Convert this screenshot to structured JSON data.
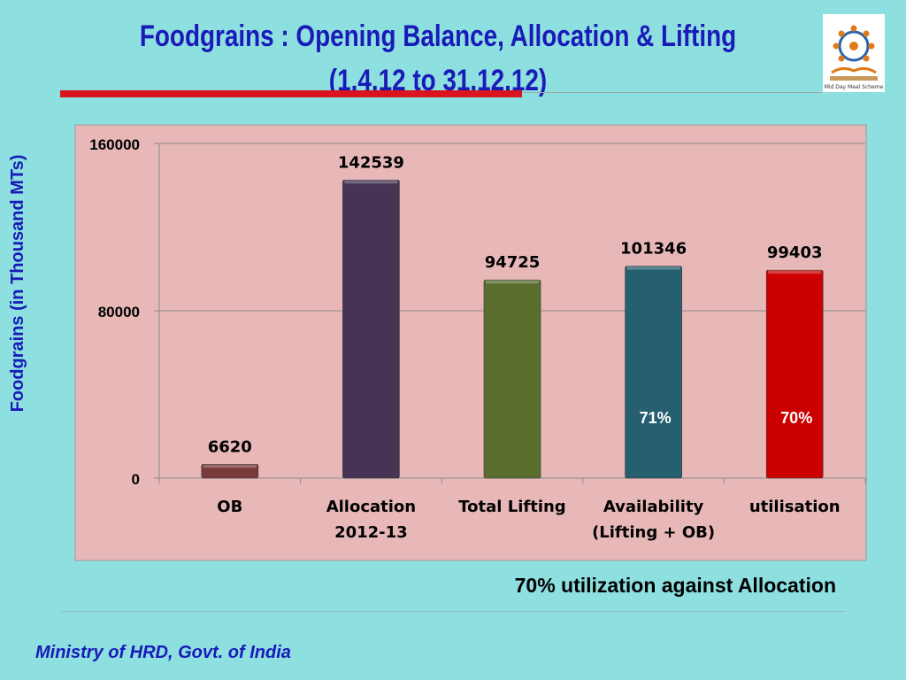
{
  "slide": {
    "title_line1": "Foodgrains : Opening Balance, Allocation & Lifting",
    "title_line2": "(1.4.12 to 31.12.12)",
    "note": "70%  utilization against  Allocation",
    "footer": "Ministry of HRD, Govt. of India",
    "logo_text": "Mid Day Meal Scheme"
  },
  "chart_data": {
    "type": "bar",
    "categories": [
      [
        "OB"
      ],
      [
        "Allocation",
        "2012-13"
      ],
      [
        "Total Lifting"
      ],
      [
        "Availability",
        "(Lifting + OB)"
      ],
      [
        "utilisation"
      ]
    ],
    "values": [
      6620,
      142539,
      94725,
      101346,
      99403
    ],
    "data_labels": [
      "6620",
      "142539",
      "94725",
      "101346",
      "99403"
    ],
    "bar_colors": [
      "#7a3a3a",
      "#473455",
      "#5a6e2e",
      "#255f70",
      "#cc0000"
    ],
    "inner_labels": [
      "",
      "",
      "",
      "71%",
      "70%"
    ],
    "ylabel": "Foodgrains (in Thousand MTs)",
    "yticks": [
      0,
      80000,
      160000
    ],
    "ylim": [
      0,
      160000
    ],
    "grid": true,
    "plot_background": "#e8b8b8"
  }
}
